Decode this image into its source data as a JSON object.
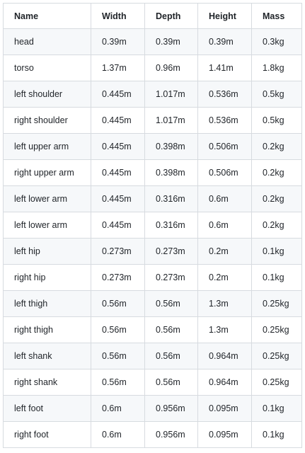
{
  "table": {
    "headers": [
      "Name",
      "Width",
      "Depth",
      "Height",
      "Mass"
    ],
    "rows": [
      [
        "head",
        "0.39m",
        "0.39m",
        "0.39m",
        "0.3kg"
      ],
      [
        "torso",
        "1.37m",
        "0.96m",
        "1.41m",
        "1.8kg"
      ],
      [
        "left shoulder",
        "0.445m",
        "1.017m",
        "0.536m",
        "0.5kg"
      ],
      [
        "right shoulder",
        "0.445m",
        "1.017m",
        "0.536m",
        "0.5kg"
      ],
      [
        "left upper arm",
        "0.445m",
        "0.398m",
        "0.506m",
        "0.2kg"
      ],
      [
        "right upper arm",
        "0.445m",
        "0.398m",
        "0.506m",
        "0.2kg"
      ],
      [
        "left lower arm",
        "0.445m",
        "0.316m",
        "0.6m",
        "0.2kg"
      ],
      [
        "left lower arm",
        "0.445m",
        "0.316m",
        "0.6m",
        "0.2kg"
      ],
      [
        "left hip",
        "0.273m",
        "0.273m",
        "0.2m",
        "0.1kg"
      ],
      [
        "right hip",
        "0.273m",
        "0.273m",
        "0.2m",
        "0.1kg"
      ],
      [
        "left thigh",
        "0.56m",
        "0.56m",
        "1.3m",
        "0.25kg"
      ],
      [
        "right thigh",
        "0.56m",
        "0.56m",
        "1.3m",
        "0.25kg"
      ],
      [
        "left shank",
        "0.56m",
        "0.56m",
        "0.964m",
        "0.25kg"
      ],
      [
        "right shank",
        "0.56m",
        "0.56m",
        "0.964m",
        "0.25kg"
      ],
      [
        "left foot",
        "0.6m",
        "0.956m",
        "0.095m",
        "0.1kg"
      ],
      [
        "right foot",
        "0.6m",
        "0.956m",
        "0.095m",
        "0.1kg"
      ]
    ]
  }
}
